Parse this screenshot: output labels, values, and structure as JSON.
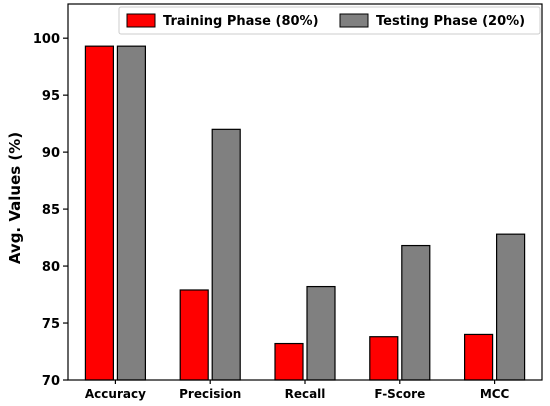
{
  "chart_data": {
    "type": "bar",
    "categories": [
      "Accuracy",
      "Precision",
      "Recall",
      "F-Score",
      "MCC"
    ],
    "series": [
      {
        "name": "Training Phase (80%)",
        "color": "#ff0000",
        "values": [
          99.3,
          77.9,
          73.2,
          73.8,
          74.0
        ]
      },
      {
        "name": "Testing Phase (20%)",
        "color": "#808080",
        "values": [
          99.3,
          92.0,
          78.2,
          81.8,
          82.8
        ]
      }
    ],
    "ylabel": "Avg. Values (%)",
    "xlabel": "",
    "ylim": [
      70,
      103
    ],
    "yticks": [
      70,
      75,
      80,
      85,
      90,
      95,
      100
    ],
    "legend": "top-right",
    "grid": false
  }
}
